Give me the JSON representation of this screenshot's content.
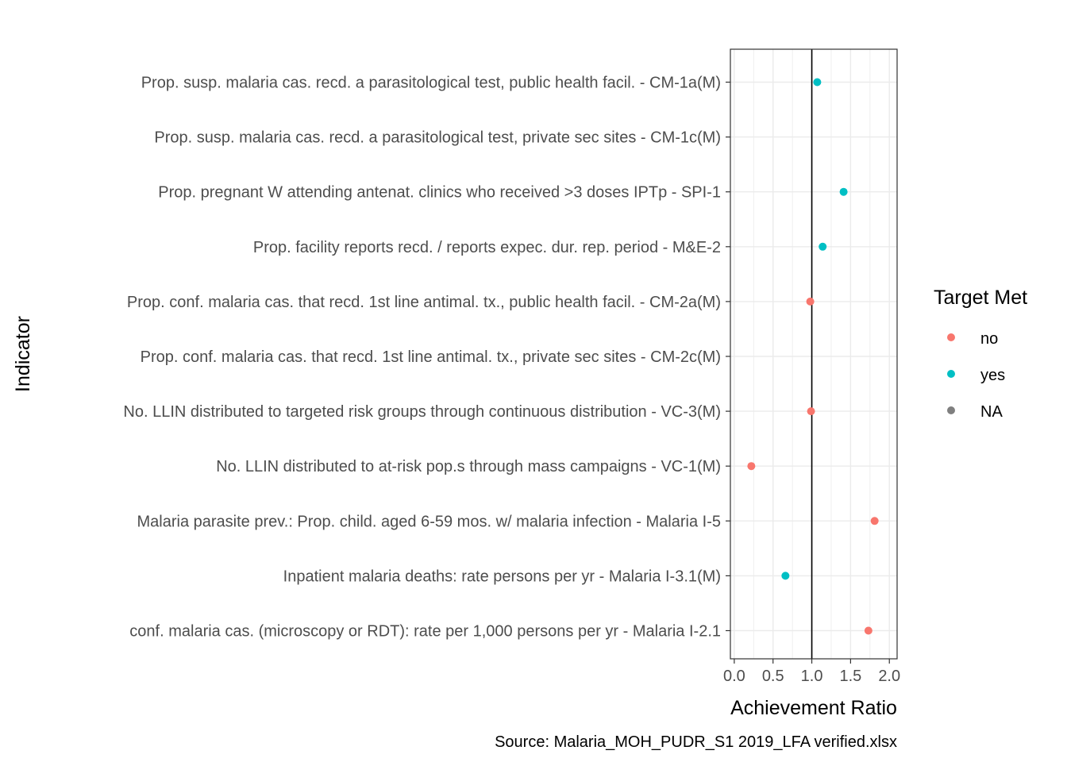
{
  "chart_data": {
    "type": "scatter",
    "xlabel": "Achievement Ratio",
    "ylabel": "Indicator",
    "caption": "Source: Malaria_MOH_PUDR_S1 2019_LFA verified.xlsx",
    "xlim": [
      -0.05,
      2.1
    ],
    "x_ticks": [
      "0.0",
      "0.5",
      "1.0",
      "1.5",
      "2.0"
    ],
    "reference_line_x": 1.0,
    "grid": true,
    "legend": {
      "title": "Target Met",
      "position": "right",
      "entries": [
        {
          "label": "no",
          "color": "#F8766D"
        },
        {
          "label": "yes",
          "color": "#00BFC4"
        },
        {
          "label": "NA",
          "color": "#7F7F7F"
        }
      ]
    },
    "categories": [
      "Prop. susp. malaria cas.  recd. a parasitological test, public health facil. - CM-1a(M)",
      "Prop. susp. malaria cas.  recd. a parasitological test, private sec sites - CM-1c(M)",
      "Prop. pregnant W attending antenat. clinics who received >3 doses IPTp - SPI-1",
      "Prop. facility reports recd. / reports expec. dur. rep. period - M&E-2",
      "Prop. conf. malaria cas.  that recd. 1st line antimal. tx., public health facil. - CM-2a(M)",
      "Prop. conf. malaria cas.  that recd. 1st line antimal. tx., private sec sites - CM-2c(M)",
      "No. LLIN distributed to targeted risk groups through continuous distribution - VC-3(M)",
      "No. LLIN distributed to at-risk pop.s through mass campaigns - VC-1(M)",
      "Malaria parasite prev.: Prop. child. aged 6-59 mos. w/ malaria infection - Malaria I-5",
      "Inpatient malaria deaths: rate persons per yr - Malaria I-3.1(M)",
      "conf. malaria cas.  (microscopy or RDT): rate per 1,000 persons per yr - Malaria I-2.1"
    ],
    "points": [
      {
        "x": 1.07,
        "target_met": "yes"
      },
      {
        "x": null,
        "target_met": "NA"
      },
      {
        "x": 1.41,
        "target_met": "yes"
      },
      {
        "x": 1.14,
        "target_met": "yes"
      },
      {
        "x": 0.98,
        "target_met": "no"
      },
      {
        "x": null,
        "target_met": "NA"
      },
      {
        "x": 0.99,
        "target_met": "no"
      },
      {
        "x": 0.22,
        "target_met": "no"
      },
      {
        "x": 1.81,
        "target_met": "no"
      },
      {
        "x": 0.66,
        "target_met": "yes"
      },
      {
        "x": 1.73,
        "target_met": "no"
      }
    ]
  }
}
